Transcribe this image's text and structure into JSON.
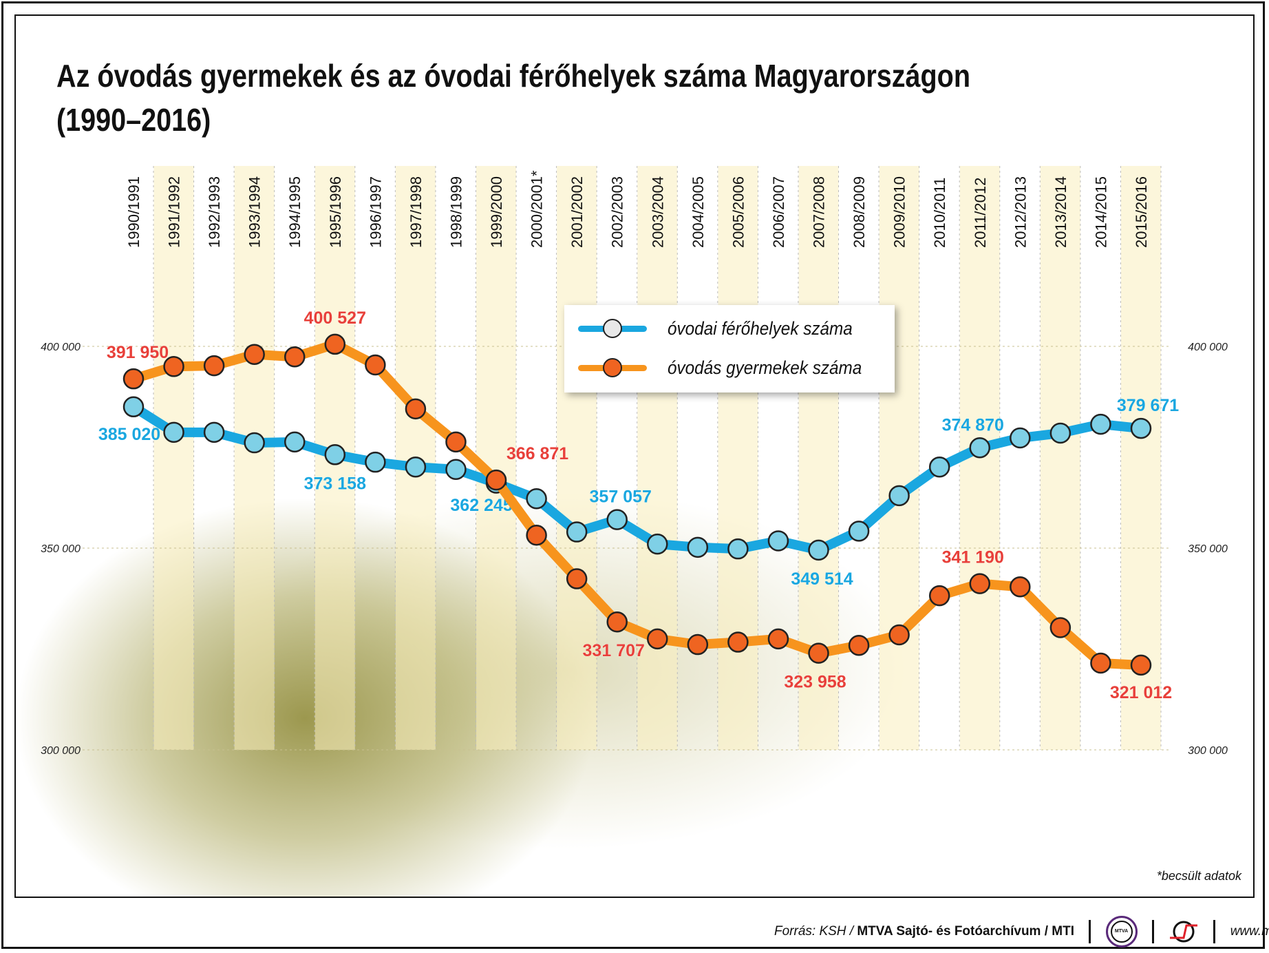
{
  "title_line1": "Az óvodás gyermekek és az óvodai férőhelyek száma Magyarországon",
  "title_line2": "(1990–2016)",
  "chart_data": {
    "type": "line",
    "title": "Az óvodás gyermekek és az óvodai férőhelyek száma Magyarországon (1990–2016)",
    "categories": [
      "1990/1991",
      "1991/1992",
      "1992/1993",
      "1993/1994",
      "1994/1995",
      "1995/1996",
      "1996/1997",
      "1997/1998",
      "1998/1999",
      "1999/2000",
      "2000/2001*",
      "2001/2002",
      "2002/2003",
      "2003/2004",
      "2004/2005",
      "2005/2006",
      "2006/2007",
      "2007/2008",
      "2008/2009",
      "2009/2010",
      "2010/2011",
      "2011/2012",
      "2012/2013",
      "2013/2014",
      "2014/2015",
      "2015/2016"
    ],
    "ylim": [
      300000,
      420000
    ],
    "yticks": [
      {
        "v": 300000,
        "label": "300 000"
      },
      {
        "v": 350000,
        "label": "350 000"
      },
      {
        "v": 400000,
        "label": "400 000"
      }
    ],
    "grid": true,
    "legend_position": "top-center",
    "series": [
      {
        "name": "óvodai férőhelyek száma",
        "color": "#1aa7e0",
        "dot": "#7fd0e6",
        "label_color": "#1aa7e0",
        "values": [
          385020,
          378700,
          378700,
          376100,
          376300,
          373158,
          371300,
          370100,
          369500,
          366100,
          362245,
          354000,
          357057,
          351000,
          350200,
          349800,
          351800,
          349514,
          354200,
          363000,
          370100,
          374870,
          377300,
          378500,
          380700,
          379671
        ],
        "labels": [
          {
            "i": 0,
            "text": "385 020"
          },
          {
            "i": 5,
            "text": "373 158"
          },
          {
            "i": 10,
            "text": "362 245"
          },
          {
            "i": 12,
            "text": "357 057"
          },
          {
            "i": 17,
            "text": "349 514"
          },
          {
            "i": 21,
            "text": "374 870"
          },
          {
            "i": 25,
            "text": "379 671"
          }
        ]
      },
      {
        "name": "óvodás gyermekek száma",
        "color": "#f7941d",
        "dot": "#ef6421",
        "label_color": "#e8403a",
        "values": [
          391950,
          395000,
          395200,
          398000,
          397400,
          400527,
          395400,
          384500,
          376300,
          366871,
          353200,
          342400,
          331707,
          327500,
          326100,
          326700,
          327500,
          323958,
          325900,
          328500,
          338200,
          341190,
          340400,
          330300,
          321500,
          321012
        ],
        "labels": [
          {
            "i": 0,
            "text": "391 950"
          },
          {
            "i": 5,
            "text": "400 527"
          },
          {
            "i": 9,
            "text": "366 871"
          },
          {
            "i": 12,
            "text": "331 707"
          },
          {
            "i": 17,
            "text": "323 958"
          },
          {
            "i": 21,
            "text": "341 190"
          },
          {
            "i": 25,
            "text": "321 012"
          }
        ]
      }
    ]
  },
  "footnote": "*becsült adatok",
  "footer": {
    "source_prefix": "Forrás: KSH / ",
    "source_bold": "MTVA Sajtó- és Fotóarchívum / MTI",
    "mtva_logo": "MTVA",
    "url": "www.mti.hu"
  }
}
